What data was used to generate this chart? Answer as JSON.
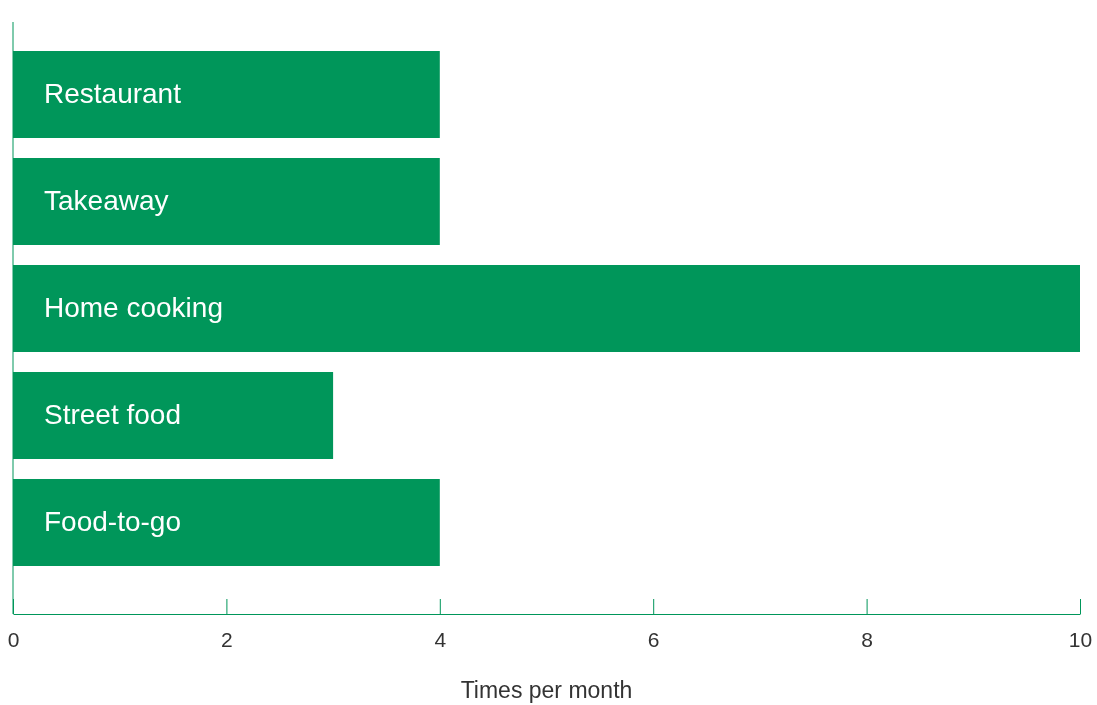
{
  "chart_data": {
    "type": "bar",
    "orientation": "horizontal",
    "xlabel": "Times per month",
    "categories": [
      "Restaurant",
      "Takeaway",
      "Home cooking",
      "Street food",
      "Food-to-go"
    ],
    "values": [
      4,
      4,
      10,
      3,
      4
    ],
    "color": "#00965a",
    "xlim": [
      0,
      10
    ],
    "xticks": [
      0,
      2,
      4,
      6,
      8,
      10
    ],
    "grid": false
  }
}
